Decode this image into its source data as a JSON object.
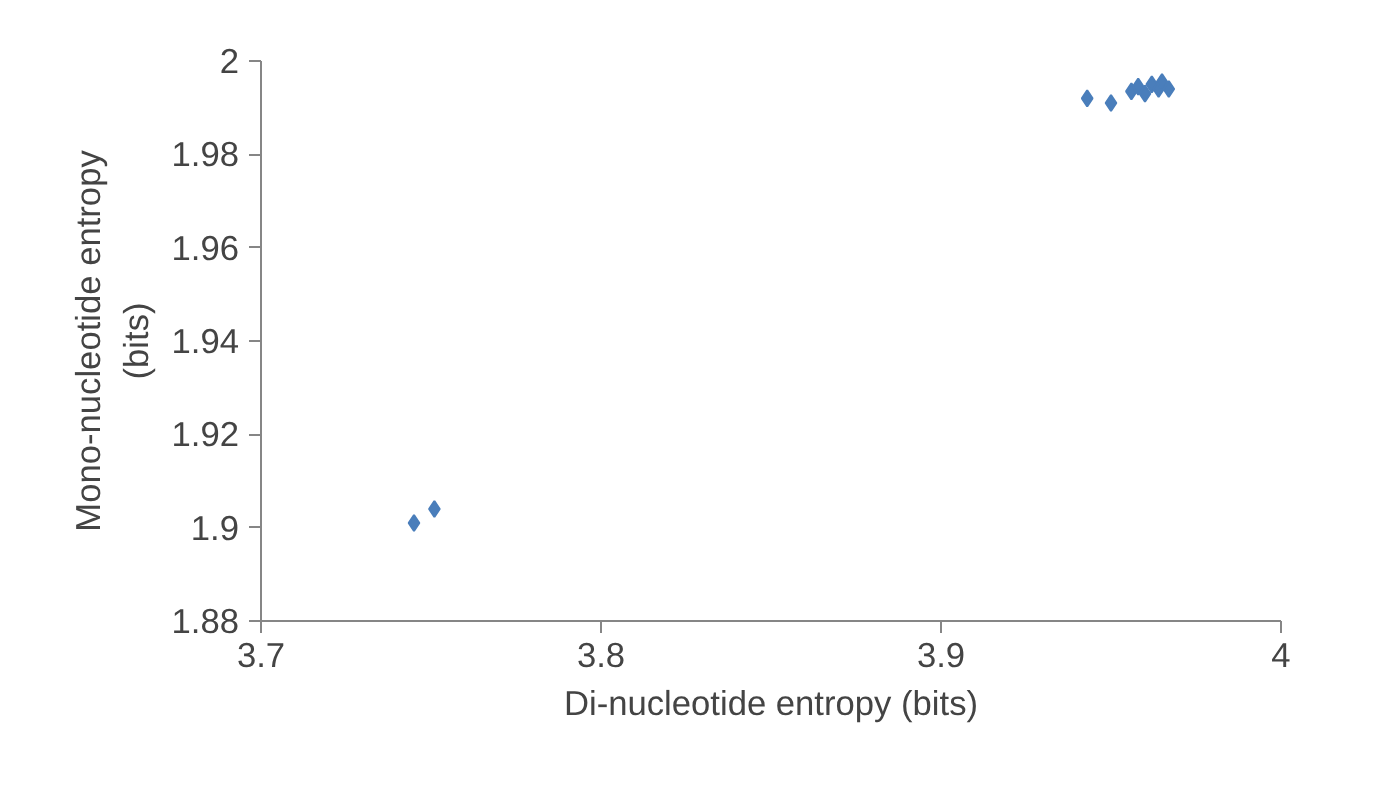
{
  "chart_data": {
    "type": "scatter",
    "xlabel": "Di-nucleotide entropy (bits)",
    "ylabel": "Mono-nucleotide entropy\n(bits)",
    "marker": "diamond",
    "grid": false,
    "x": [
      3.745,
      3.751,
      3.943,
      3.95,
      3.956,
      3.958,
      3.96,
      3.962,
      3.964,
      3.965,
      3.967
    ],
    "series": [
      {
        "color": "#4a7ebb",
        "values": [
          1.901,
          1.904,
          1.992,
          1.991,
          1.9935,
          1.9945,
          1.993,
          1.995,
          1.994,
          1.9955,
          1.994
        ]
      }
    ],
    "xlim": [
      3.7,
      4
    ],
    "xticks": [
      3.7,
      3.8,
      3.9,
      4
    ],
    "ylim": [
      1.88,
      2
    ],
    "yticks": [
      1.88,
      1.9,
      1.92,
      1.94,
      1.96,
      1.98,
      2
    ]
  }
}
